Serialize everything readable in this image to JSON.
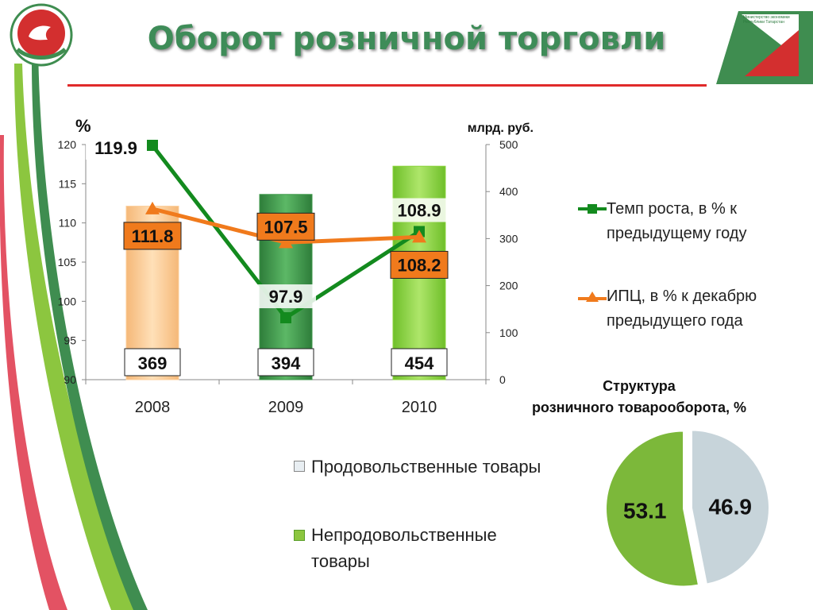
{
  "page_title": "Оборот розничной торговли",
  "logo_right_text": "Министерство экономики Республики Татарстан",
  "chart_data": [
    {
      "type": "bar",
      "categories": [
        "2008",
        "2009",
        "2010"
      ],
      "left_axis": {
        "label": "%",
        "ylim": [
          90,
          120
        ],
        "ticks": [
          "90",
          "95",
          "100",
          "105",
          "110",
          "115",
          "120"
        ]
      },
      "right_axis": {
        "label": "млрд. руб.",
        "ylim": [
          0,
          500
        ],
        "ticks": [
          "0",
          "100",
          "200",
          "300",
          "400",
          "500"
        ]
      },
      "bar_series": {
        "values": [
          369,
          394,
          454
        ],
        "labels": [
          "369",
          "394",
          "454"
        ],
        "colors": [
          "#fccf9b",
          "#3f9a4b",
          "#8cd43e"
        ]
      },
      "line_series": [
        {
          "name": "Темп роста, в % к предыдущему году",
          "values": [
            119.9,
            97.9,
            108.9
          ],
          "labels": [
            "119.9",
            "97.9",
            "108.9"
          ],
          "color": "#138a1e",
          "marker": "square"
        },
        {
          "name": "ИПЦ, в % к декабрю предыдущего года",
          "values": [
            111.8,
            107.5,
            108.2
          ],
          "labels": [
            "111.8",
            "107.5",
            "108.2"
          ],
          "color": "#f07a1c",
          "marker": "triangle"
        }
      ],
      "legend_placement": "right",
      "grid": false
    },
    {
      "type": "pie",
      "title_line1": "Структура",
      "title_line2": "розничного товарооборота, %",
      "slices": [
        {
          "name": "Продовольственные товары",
          "value": 46.9,
          "label": "46.9",
          "color": "#c7d4da"
        },
        {
          "name": "Непродовольственные товары",
          "value": 53.1,
          "label": "53.1",
          "color": "#7cb83a"
        }
      ],
      "legend_placement": "left"
    }
  ]
}
